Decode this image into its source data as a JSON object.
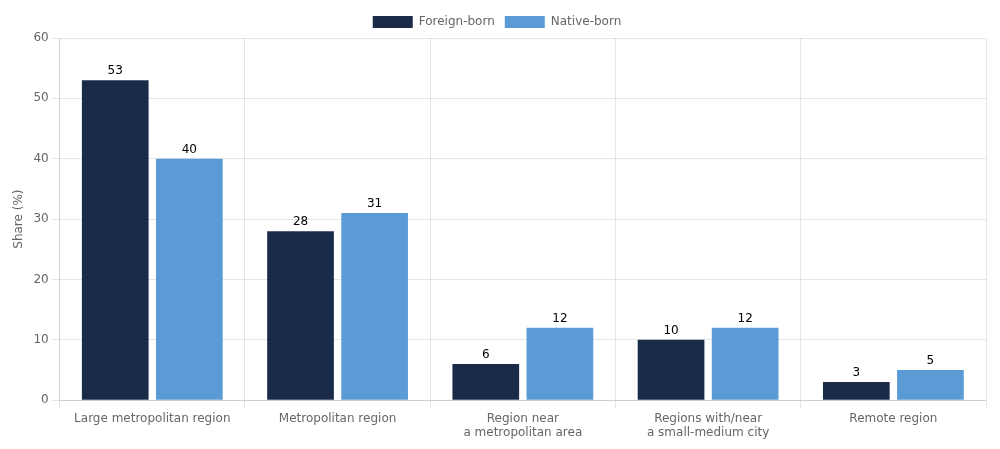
{
  "chart_data": {
    "type": "bar",
    "categories": [
      "Large metropolitan region",
      "Metropolitan region",
      "Region near\na metropolitan area",
      "Regions with/near\na small-medium city",
      "Remote region"
    ],
    "series": [
      {
        "name": "Foreign-born",
        "color": "#1a2b4a",
        "values": [
          53,
          28,
          6,
          10,
          3
        ]
      },
      {
        "name": "Native-born",
        "color": "#5b9bd5",
        "values": [
          40,
          31,
          12,
          12,
          5
        ]
      }
    ],
    "ylabel": "Share (%)",
    "ylim": [
      0,
      60
    ],
    "yticks": [
      0,
      10,
      20,
      30,
      40,
      50,
      60
    ],
    "grid": true,
    "legend": "top",
    "data_labels": true
  }
}
